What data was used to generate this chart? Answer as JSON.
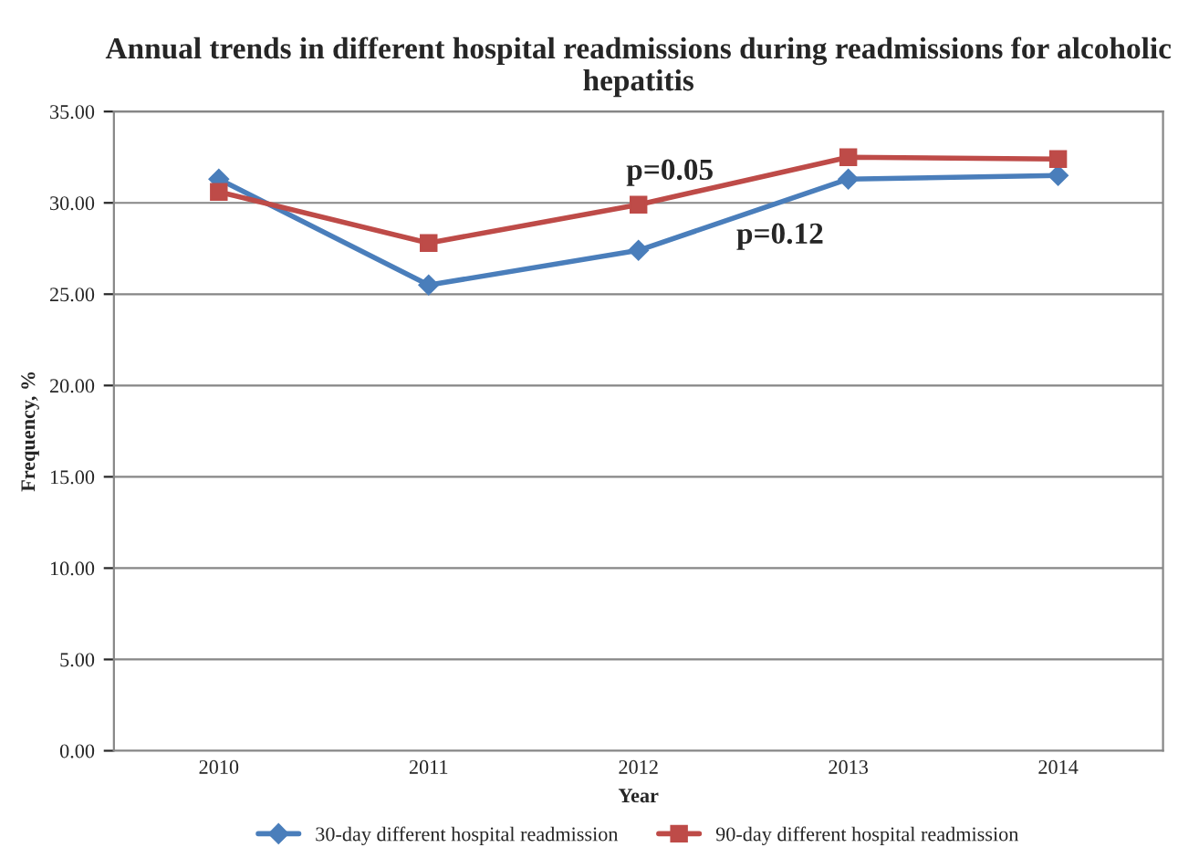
{
  "chart_data": {
    "type": "line",
    "title": "Annual trends in different hospital readmissions during readmissions for alcoholic hepatitis",
    "xlabel": "Year",
    "ylabel": "Frequency, %",
    "categories": [
      "2010",
      "2011",
      "2012",
      "2013",
      "2014"
    ],
    "series": [
      {
        "name": "30-day different hospital readmission",
        "color": "#4a7ebb",
        "marker": "diamond",
        "values": [
          31.3,
          25.5,
          27.4,
          31.3,
          31.5
        ]
      },
      {
        "name": "90-day different hospital readmission",
        "color": "#be4b48",
        "marker": "square",
        "values": [
          30.6,
          27.8,
          29.9,
          32.5,
          32.4
        ]
      }
    ],
    "ylim": [
      0,
      35
    ],
    "yticks": [
      {
        "value": 0,
        "label": "0.00"
      },
      {
        "value": 5,
        "label": "5.00"
      },
      {
        "value": 10,
        "label": "10.00"
      },
      {
        "value": 15,
        "label": "15.00"
      },
      {
        "value": 20,
        "label": "20.00"
      },
      {
        "value": 25,
        "label": "25.00"
      },
      {
        "value": 30,
        "label": "30.00"
      },
      {
        "value": 35,
        "label": "35.00"
      }
    ],
    "grid": "y",
    "legend": "bottom",
    "line_style": "solid",
    "annotations": [
      "p=0.05",
      "p=0.12"
    ]
  }
}
